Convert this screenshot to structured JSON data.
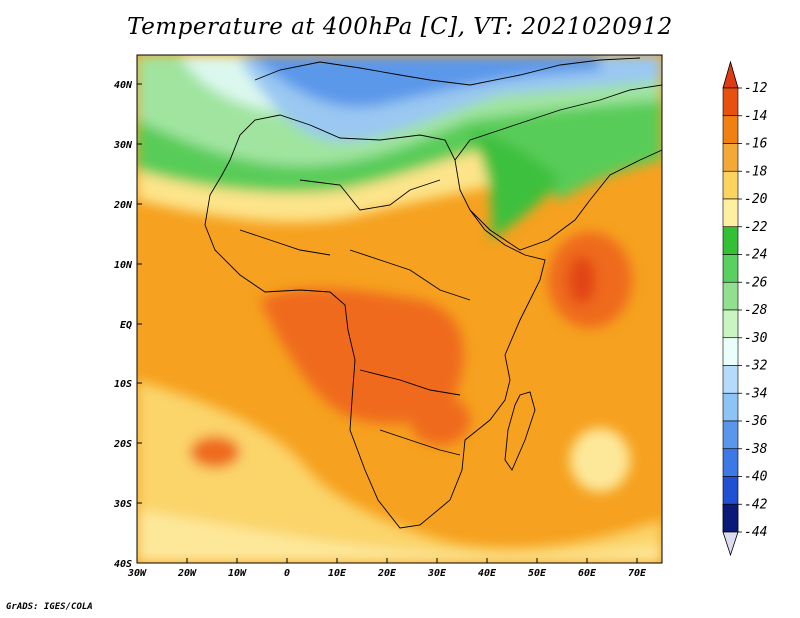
{
  "title": "Temperature at 400hPa [C], VT: 2021020912",
  "credit": "GrADS: IGES/COLA",
  "map": {
    "lat_labels": [
      "40N",
      "30N",
      "20N",
      "10N",
      "EQ",
      "10S",
      "20S",
      "30S",
      "40S"
    ],
    "lon_labels": [
      "30W",
      "20W",
      "10W",
      "0",
      "10E",
      "20E",
      "30E",
      "40E",
      "50E",
      "60E",
      "70E"
    ],
    "lon_range": [
      -30,
      75
    ],
    "lat_range": [
      -40,
      45
    ]
  },
  "colorbar": {
    "levels": [
      "-12",
      "-14",
      "-16",
      "-18",
      "-20",
      "-22",
      "-24",
      "-26",
      "-28",
      "-30",
      "-32",
      "-34",
      "-36",
      "-38",
      "-40",
      "-42",
      "-44"
    ],
    "colors": [
      "#f0f0f0",
      "#e85010",
      "#f08010",
      "#f4a838",
      "#fbd460",
      "#fdf0a0",
      "#fefed0",
      "#34c034",
      "#5ad060",
      "#90e090",
      "#c8f5c0",
      "#eafffc",
      "#b4dcfa",
      "#8cc4f5",
      "#5a96ec",
      "#3c78e6",
      "#2050d4",
      "#1438b4",
      "#0a1a78"
    ],
    "top_color": "#e03c14",
    "bottom_color": "#dcdcf0"
  }
}
